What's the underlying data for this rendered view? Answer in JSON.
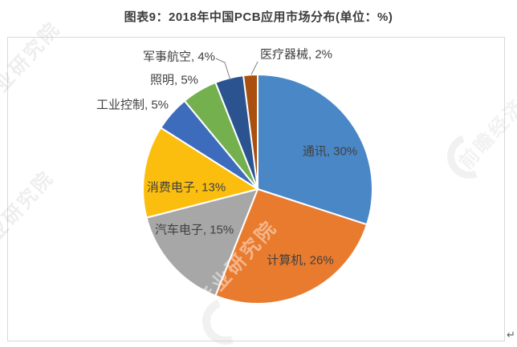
{
  "page": {
    "title": "图表9：2018年中国PCB应用市场分布(单位：%)"
  },
  "chart_data": {
    "type": "pie",
    "title": "图表9：2018年中国PCB应用市场分布(单位：%)",
    "unit": "%",
    "start_angle_deg": 0,
    "direction": "clockwise",
    "label_format": "{name}, {value}%",
    "slices": [
      {
        "name": "通讯",
        "value": 30,
        "color": "#4A87C6",
        "label_placement": "inside"
      },
      {
        "name": "计算机",
        "value": 26,
        "color": "#E97B2E",
        "label_placement": "inside"
      },
      {
        "name": "汽车电子",
        "value": 15,
        "color": "#A7A7A7",
        "label_placement": "inside"
      },
      {
        "name": "消费电子",
        "value": 13,
        "color": "#FBBE0E",
        "label_placement": "inside"
      },
      {
        "name": "工业控制",
        "value": 5,
        "color": "#3E6CBC",
        "label_placement": "outside"
      },
      {
        "name": "照明",
        "value": 5,
        "color": "#74B14E",
        "label_placement": "outside"
      },
      {
        "name": "军事航空",
        "value": 4,
        "color": "#2B5390",
        "label_placement": "outside"
      },
      {
        "name": "医疗器械",
        "value": 2,
        "color": "#A9500F",
        "label_placement": "outside"
      }
    ]
  },
  "watermarks": {
    "industry": "前瞻产业研究院",
    "economist": "前瞻经济学人"
  },
  "marks": {
    "line_break": "↵"
  }
}
